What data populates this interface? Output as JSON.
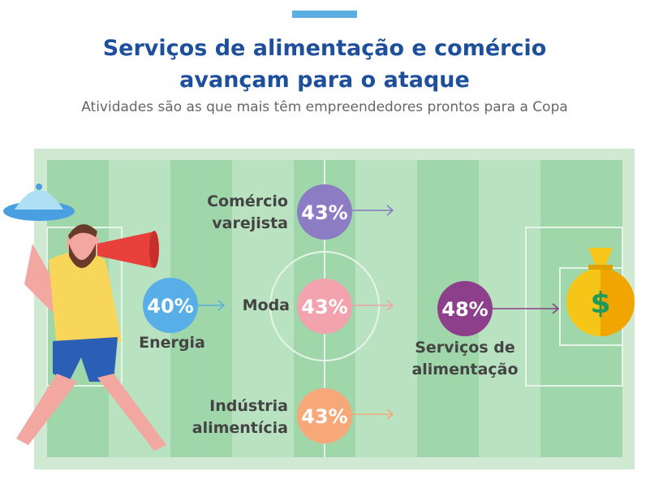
{
  "header": {
    "title": [
      "Serviços de alimentação e comércio",
      "avançam para o ataque"
    ],
    "subtitle": "Atividades  são as que mais têm empreendedores prontos para a Copa"
  },
  "items": [
    {
      "label": [
        "Energia"
      ],
      "value": "40%"
    },
    {
      "label": [
        "Comércio",
        "varejista"
      ],
      "value": "43%"
    },
    {
      "label": [
        "Moda"
      ],
      "value": "43%"
    },
    {
      "label": [
        "Indústria",
        "alimentícia"
      ],
      "value": "43%"
    },
    {
      "label": [
        "Serviços de",
        "alimentação"
      ],
      "value": "48%"
    }
  ]
}
